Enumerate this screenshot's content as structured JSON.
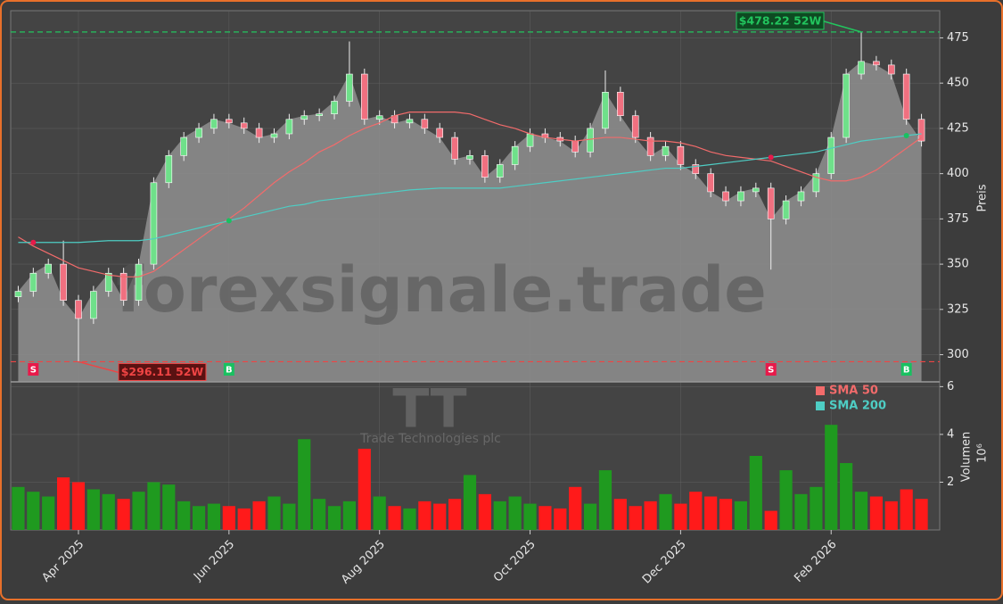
{
  "chart_data": {
    "type": "candlestick",
    "categories": [
      null,
      null,
      null,
      null,
      "Apr 2025",
      null,
      null,
      null,
      null,
      null,
      null,
      null,
      null,
      null,
      "Jun 2025",
      null,
      null,
      null,
      null,
      null,
      null,
      null,
      null,
      null,
      "Aug 2025",
      null,
      null,
      null,
      null,
      null,
      null,
      null,
      null,
      null,
      "Oct 2025",
      null,
      null,
      null,
      null,
      null,
      null,
      null,
      null,
      null,
      "Dec 2025",
      null,
      null,
      null,
      null,
      null,
      null,
      null,
      null,
      null,
      "Feb 2026",
      null,
      null,
      null,
      null,
      null,
      null
    ],
    "open": [
      332,
      335,
      345,
      350,
      330,
      320,
      335,
      345,
      330,
      350,
      395,
      410,
      420,
      425,
      430,
      428,
      425,
      420,
      422,
      430,
      432,
      433,
      440,
      455,
      430,
      432,
      428,
      430,
      425,
      420,
      408,
      410,
      398,
      405,
      415,
      422,
      420,
      418,
      412,
      425,
      445,
      432,
      420,
      410,
      415,
      405,
      400,
      390,
      385,
      390,
      392,
      375,
      385,
      390,
      400,
      420,
      455,
      462,
      460,
      455,
      430
    ],
    "high": [
      338,
      348,
      353,
      363,
      333,
      338,
      348,
      348,
      353,
      398,
      413,
      423,
      428,
      433,
      433,
      431,
      428,
      425,
      433,
      435,
      436,
      443,
      473,
      458,
      435,
      435,
      433,
      433,
      428,
      423,
      413,
      413,
      408,
      418,
      425,
      425,
      423,
      421,
      428,
      457,
      448,
      435,
      423,
      418,
      418,
      408,
      403,
      393,
      393,
      395,
      395,
      388,
      393,
      403,
      423,
      458,
      478.22,
      465,
      463,
      458,
      433
    ],
    "low": [
      329,
      332,
      342,
      327,
      296.11,
      317,
      332,
      327,
      327,
      347,
      392,
      407,
      417,
      422,
      425,
      422,
      417,
      417,
      419,
      427,
      429,
      430,
      437,
      427,
      427,
      425,
      425,
      422,
      417,
      405,
      405,
      395,
      395,
      402,
      412,
      417,
      415,
      409,
      409,
      422,
      429,
      417,
      407,
      407,
      402,
      397,
      387,
      382,
      382,
      387,
      347,
      372,
      382,
      387,
      397,
      417,
      452,
      457,
      452,
      427,
      415
    ],
    "close": [
      335,
      345,
      350,
      330,
      320,
      335,
      345,
      330,
      350,
      395,
      410,
      420,
      425,
      430,
      428,
      425,
      420,
      422,
      430,
      432,
      433,
      440,
      455,
      430,
      432,
      428,
      430,
      425,
      420,
      408,
      410,
      398,
      405,
      415,
      422,
      420,
      418,
      412,
      425,
      445,
      432,
      420,
      410,
      415,
      405,
      400,
      390,
      385,
      390,
      392,
      375,
      385,
      390,
      400,
      420,
      455,
      462,
      460,
      455,
      430,
      418
    ],
    "series": [
      {
        "name": "SMA 50",
        "color": "#f26b6b",
        "values": [
          365,
          360,
          356,
          352,
          348,
          346,
          344,
          343,
          343,
          346,
          352,
          358,
          364,
          370,
          375,
          381,
          388,
          395,
          401,
          406,
          412,
          416,
          421,
          425,
          428,
          432,
          434,
          434,
          434,
          434,
          433,
          430,
          427,
          425,
          422,
          420,
          419,
          418,
          419,
          420,
          420,
          419,
          418,
          418,
          417,
          415,
          412,
          410,
          409,
          408,
          407,
          404,
          401,
          398,
          396,
          396,
          398,
          402,
          408,
          414,
          420
        ]
      },
      {
        "name": "SMA 200",
        "color": "#4ecdc4",
        "values": [
          362,
          362,
          362,
          362,
          362,
          362.5,
          363,
          363,
          363,
          364,
          366,
          368,
          370,
          372,
          374,
          376,
          378,
          380,
          382,
          383,
          385,
          386,
          387,
          388,
          389,
          390,
          391,
          391.5,
          392,
          392,
          392,
          392,
          392,
          393,
          394,
          395,
          396,
          397,
          398,
          399,
          400,
          401,
          402,
          403,
          403,
          404,
          405,
          406,
          407,
          408,
          409,
          410,
          411,
          412,
          414,
          416,
          418,
          419,
          420,
          421,
          422
        ]
      }
    ],
    "signals": [
      null,
      "S",
      null,
      null,
      null,
      null,
      null,
      null,
      null,
      null,
      null,
      null,
      null,
      null,
      "B",
      null,
      null,
      null,
      null,
      null,
      null,
      null,
      null,
      null,
      null,
      null,
      null,
      null,
      null,
      null,
      null,
      null,
      null,
      null,
      null,
      null,
      null,
      null,
      null,
      null,
      null,
      null,
      null,
      null,
      null,
      null,
      null,
      null,
      null,
      null,
      "S",
      null,
      null,
      null,
      null,
      null,
      null,
      null,
      null,
      "B",
      null
    ],
    "ylim": [
      285,
      490
    ],
    "yticks": [
      300,
      325,
      350,
      375,
      400,
      425,
      450,
      475
    ],
    "ylabel": "Preis",
    "volume": {
      "values": [
        1.8,
        1.6,
        1.4,
        2.2,
        2.0,
        1.7,
        1.5,
        1.3,
        1.6,
        2.0,
        1.9,
        1.2,
        1.0,
        1.1,
        1.0,
        0.9,
        1.2,
        1.4,
        1.1,
        3.8,
        1.3,
        1.0,
        1.2,
        3.4,
        1.4,
        1.0,
        0.9,
        1.2,
        1.1,
        1.3,
        2.3,
        1.5,
        1.2,
        1.4,
        1.1,
        1.0,
        0.9,
        1.8,
        1.1,
        2.5,
        1.3,
        1.0,
        1.2,
        1.5,
        1.1,
        1.6,
        1.4,
        1.3,
        1.2,
        3.1,
        0.8,
        2.5,
        1.5,
        1.8,
        4.4,
        2.8,
        1.6,
        1.4,
        1.2,
        1.7,
        1.3
      ],
      "ylim": [
        0,
        6.2
      ],
      "yticks": [
        2,
        4,
        6
      ],
      "label": "Volumen",
      "scale": "10⁶"
    },
    "annotations": [
      {
        "value": 478.22,
        "label": "$478.22 52W",
        "color": "#22c55e"
      },
      {
        "value": 296.11,
        "label": "$296.11 52W",
        "color": "#ef4444"
      }
    ],
    "watermark": "forexsignale.trade",
    "logo": "TT",
    "logo_caption": "Trade Technologies plc",
    "grid": true
  }
}
